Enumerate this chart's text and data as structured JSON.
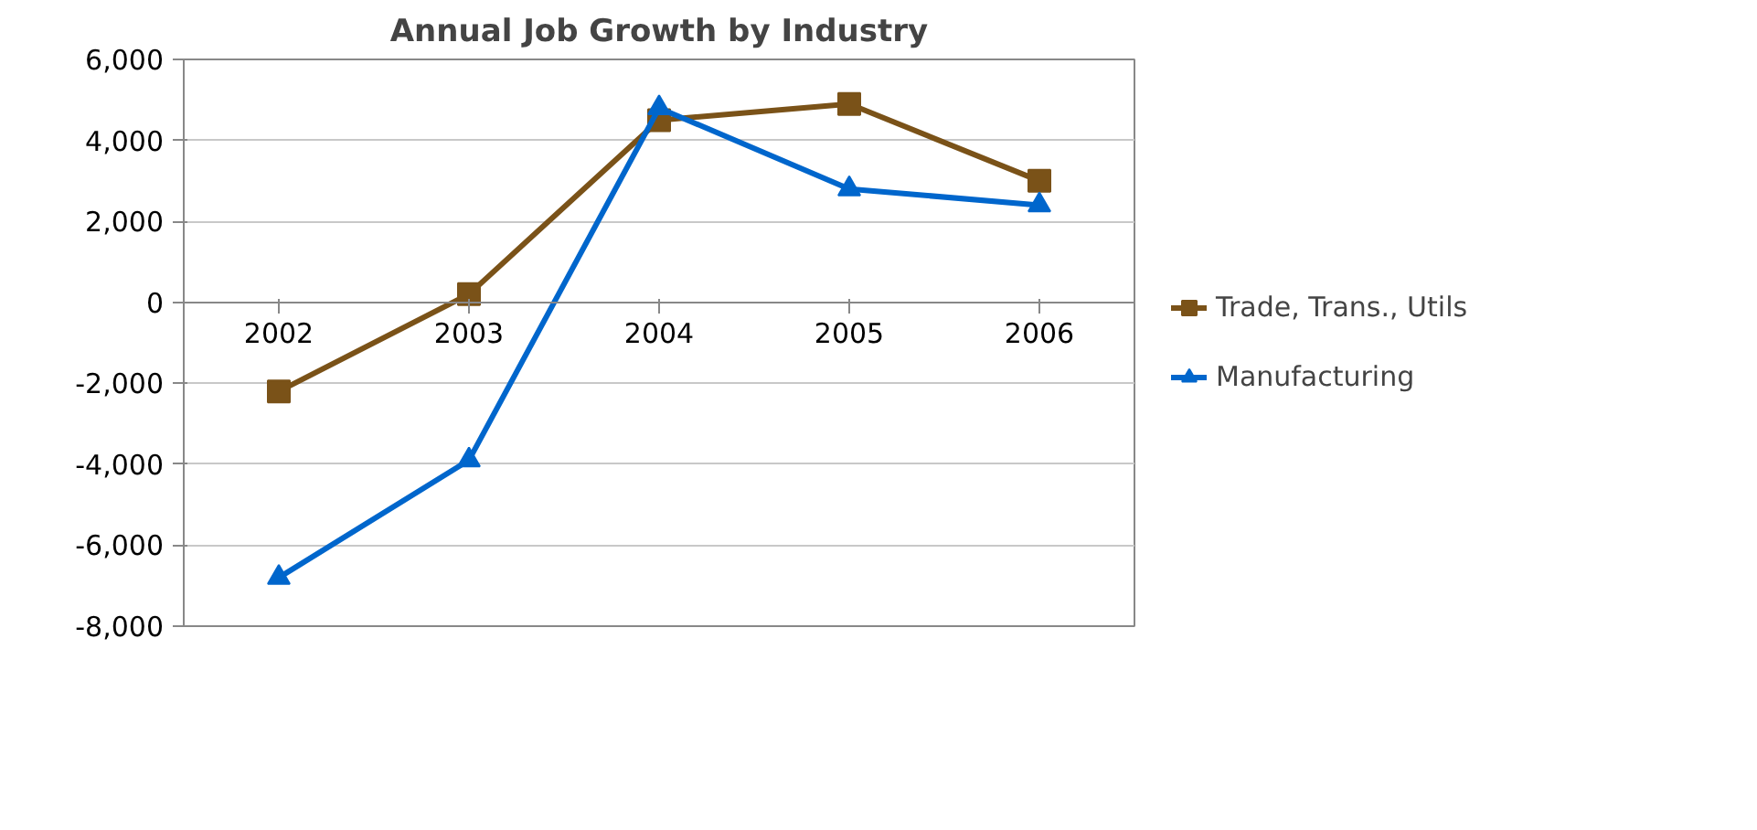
{
  "chart_data": {
    "type": "line",
    "title": "Annual Job Growth by Industry",
    "categories": [
      "2002",
      "2003",
      "2004",
      "2005",
      "2006"
    ],
    "series": [
      {
        "name": "Trade, Trans., Utils",
        "color": "#7a5218",
        "marker": "square",
        "values": [
          -2200,
          200,
          4500,
          4900,
          3000
        ]
      },
      {
        "name": "Manufacturing",
        "color": "#0066cc",
        "marker": "triangle",
        "values": [
          -6800,
          -3900,
          4800,
          2800,
          2400
        ]
      }
    ],
    "ylim": [
      -8000,
      6000
    ],
    "yticks": [
      {
        "value": -8000,
        "label": "-8,000"
      },
      {
        "value": -6000,
        "label": "-6,000"
      },
      {
        "value": -4000,
        "label": "-4,000"
      },
      {
        "value": -2000,
        "label": "-2,000"
      },
      0,
      {
        "value": 2000,
        "label": "2,000"
      },
      {
        "value": 4000,
        "label": "4,000"
      },
      {
        "value": 6000,
        "label": "6,000"
      }
    ],
    "grid": "y",
    "legend": "right",
    "line_style": "solid"
  }
}
